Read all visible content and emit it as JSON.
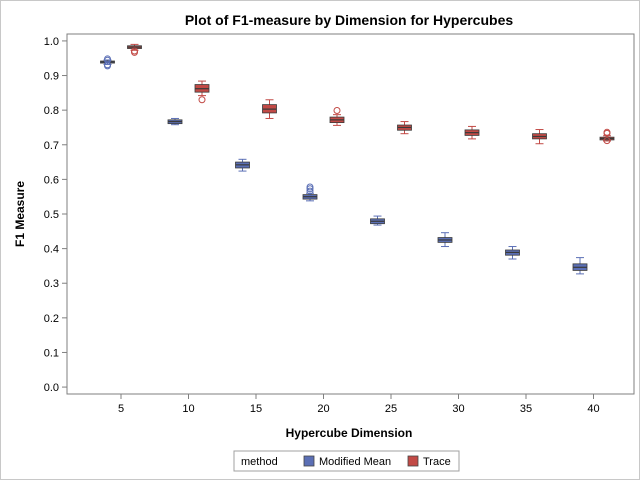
{
  "chart_data": {
    "type": "box",
    "title": "Plot of F1-measure by Dimension for Hypercubes",
    "xlabel": "Hypercube Dimension",
    "ylabel": "F1 Measure",
    "xticks": [
      5,
      10,
      15,
      20,
      25,
      30,
      35,
      40
    ],
    "yticks": [
      "0.0",
      "0.1",
      "0.2",
      "0.3",
      "0.4",
      "0.5",
      "0.6",
      "0.7",
      "0.8",
      "0.9",
      "1.0"
    ],
    "xlim": [
      1,
      43
    ],
    "ylim": [
      -0.02,
      1.02
    ],
    "grid": false,
    "legend": {
      "title": "method",
      "position": "bottom",
      "entries": [
        {
          "name": "Modified Mean",
          "color": "#5b6fb5"
        },
        {
          "name": "Trace",
          "color": "#c24a46"
        }
      ]
    },
    "series": [
      {
        "name": "Modified Mean",
        "color": "#5b6fb5",
        "boxes": [
          {
            "x": 4,
            "whisker_low": 0.932,
            "q1": 0.936,
            "median": 0.939,
            "q3": 0.942,
            "whisker_high": 0.945,
            "outliers": [
              0.928,
              0.931,
              0.944,
              0.948
            ]
          },
          {
            "x": 9,
            "whisker_low": 0.758,
            "q1": 0.761,
            "median": 0.767,
            "q3": 0.772,
            "whisker_high": 0.776,
            "outliers": []
          },
          {
            "x": 14,
            "whisker_low": 0.624,
            "q1": 0.633,
            "median": 0.642,
            "q3": 0.65,
            "whisker_high": 0.658,
            "outliers": []
          },
          {
            "x": 19,
            "whisker_low": 0.538,
            "q1": 0.543,
            "median": 0.55,
            "q3": 0.556,
            "whisker_high": 0.56,
            "outliers": [
              0.566,
              0.573,
              0.578
            ]
          },
          {
            "x": 24,
            "whisker_low": 0.468,
            "q1": 0.472,
            "median": 0.479,
            "q3": 0.486,
            "whisker_high": 0.494,
            "outliers": []
          },
          {
            "x": 29,
            "whisker_low": 0.406,
            "q1": 0.418,
            "median": 0.425,
            "q3": 0.432,
            "whisker_high": 0.446,
            "outliers": []
          },
          {
            "x": 34,
            "whisker_low": 0.37,
            "q1": 0.381,
            "median": 0.389,
            "q3": 0.396,
            "whisker_high": 0.406,
            "outliers": []
          },
          {
            "x": 39,
            "whisker_low": 0.327,
            "q1": 0.337,
            "median": 0.346,
            "q3": 0.356,
            "whisker_high": 0.374,
            "outliers": []
          }
        ]
      },
      {
        "name": "Trace",
        "color": "#c24a46",
        "boxes": [
          {
            "x": 6,
            "whisker_low": 0.973,
            "q1": 0.978,
            "median": 0.982,
            "q3": 0.986,
            "whisker_high": 0.99,
            "outliers": [
              0.967,
              0.971
            ]
          },
          {
            "x": 11,
            "whisker_low": 0.842,
            "q1": 0.852,
            "median": 0.862,
            "q3": 0.874,
            "whisker_high": 0.884,
            "outliers": [
              0.83
            ]
          },
          {
            "x": 16,
            "whisker_low": 0.776,
            "q1": 0.792,
            "median": 0.803,
            "q3": 0.816,
            "whisker_high": 0.83,
            "outliers": []
          },
          {
            "x": 21,
            "whisker_low": 0.756,
            "q1": 0.764,
            "median": 0.772,
            "q3": 0.78,
            "whisker_high": 0.787,
            "outliers": [
              0.799
            ]
          },
          {
            "x": 26,
            "whisker_low": 0.732,
            "q1": 0.742,
            "median": 0.75,
            "q3": 0.757,
            "whisker_high": 0.767,
            "outliers": []
          },
          {
            "x": 31,
            "whisker_low": 0.717,
            "q1": 0.727,
            "median": 0.735,
            "q3": 0.743,
            "whisker_high": 0.753,
            "outliers": []
          },
          {
            "x": 36,
            "whisker_low": 0.703,
            "q1": 0.717,
            "median": 0.724,
            "q3": 0.732,
            "whisker_high": 0.744,
            "outliers": []
          },
          {
            "x": 41,
            "whisker_low": 0.711,
            "q1": 0.714,
            "median": 0.718,
            "q3": 0.722,
            "whisker_high": 0.726,
            "outliers": [
              0.712,
              0.733,
              0.736
            ]
          }
        ]
      }
    ]
  }
}
